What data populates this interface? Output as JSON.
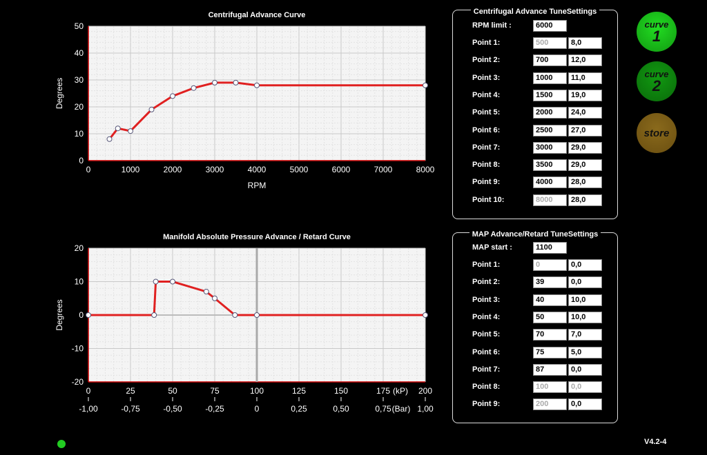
{
  "chart_data": [
    {
      "type": "line",
      "title": "Centrifugal Advance Curve",
      "xlabel": "RPM",
      "ylabel": "Degrees",
      "xlim": [
        0,
        8000
      ],
      "ylim": [
        0,
        50
      ],
      "xticks": [
        "0",
        "1000",
        "2000",
        "3000",
        "4000",
        "5000",
        "6000",
        "7000",
        "8000"
      ],
      "yticks": [
        "0",
        "10",
        "20",
        "30",
        "40",
        "50"
      ],
      "grid": true,
      "x": [
        500,
        700,
        1000,
        1500,
        2000,
        2500,
        3000,
        3500,
        4000,
        8000
      ],
      "y": [
        8,
        12,
        11,
        19,
        24,
        27,
        29,
        29,
        28,
        28
      ],
      "color": "#e02020"
    },
    {
      "type": "line",
      "title": "Manifold Absolute Pressure Advance / Retard Curve",
      "xlabel": "",
      "ylabel": "Degrees",
      "xlim": [
        0,
        200
      ],
      "ylim": [
        -20,
        20
      ],
      "xticks": [
        "0",
        "25",
        "50",
        "75",
        "100",
        "125",
        "150",
        "175",
        "200"
      ],
      "xticks_bar": [
        "-1,00",
        "-0,75",
        "-0,50",
        "-0,25",
        "0",
        "0,25",
        "0,50",
        "0,75",
        "1,00"
      ],
      "xunit_kp": "(kP)",
      "xunit_bar": "(Bar)",
      "yticks": [
        "-20",
        "-10",
        "0",
        "10",
        "20"
      ],
      "grid": true,
      "x": [
        0,
        39,
        40,
        50,
        70,
        75,
        87,
        100,
        200
      ],
      "y": [
        0,
        0,
        10,
        10,
        7,
        5,
        0,
        0,
        0
      ],
      "color": "#e02020"
    }
  ],
  "centrifugal": {
    "title": "Centrifugal Advance TuneSettings",
    "rpm_label": "RPM limit :",
    "rpm_limit": "6000",
    "points": [
      {
        "label": "Point 1:",
        "rpm": "500",
        "deg": "8,0",
        "dis": true
      },
      {
        "label": "Point 2:",
        "rpm": "700",
        "deg": "12,0"
      },
      {
        "label": "Point 3:",
        "rpm": "1000",
        "deg": "11,0"
      },
      {
        "label": "Point 4:",
        "rpm": "1500",
        "deg": "19,0"
      },
      {
        "label": "Point 5:",
        "rpm": "2000",
        "deg": "24,0"
      },
      {
        "label": "Point 6:",
        "rpm": "2500",
        "deg": "27,0"
      },
      {
        "label": "Point 7:",
        "rpm": "3000",
        "deg": "29,0"
      },
      {
        "label": "Point 8:",
        "rpm": "3500",
        "deg": "29,0"
      },
      {
        "label": "Point 9:",
        "rpm": "4000",
        "deg": "28,0"
      },
      {
        "label": "Point 10:",
        "rpm": "8000",
        "deg": "28,0",
        "dis": true
      }
    ]
  },
  "map": {
    "title": "MAP Advance/Retard TuneSettings",
    "start_label": "MAP start :",
    "start": "1100",
    "points": [
      {
        "label": "Point 1:",
        "kp": "0",
        "deg": "0,0",
        "dis": true
      },
      {
        "label": "Point 2:",
        "kp": "39",
        "deg": "0,0"
      },
      {
        "label": "Point 3:",
        "kp": "40",
        "deg": "10,0"
      },
      {
        "label": "Point 4:",
        "kp": "50",
        "deg": "10,0"
      },
      {
        "label": "Point 5:",
        "kp": "70",
        "deg": "7,0"
      },
      {
        "label": "Point 6:",
        "kp": "75",
        "deg": "5,0"
      },
      {
        "label": "Point 7:",
        "kp": "87",
        "deg": "0,0"
      },
      {
        "label": "Point 8:",
        "kp": "100",
        "deg": "0,0",
        "dis": true,
        "degdis": true
      },
      {
        "label": "Point 9:",
        "kp": "200",
        "deg": "0,0",
        "dis": true
      }
    ]
  },
  "buttons": {
    "curve1_word": "curve",
    "curve1_num": "1",
    "curve2_word": "curve",
    "curve2_num": "2",
    "store": "store",
    "curve1_color": "#22dd22",
    "curve2_color": "#119911",
    "store_color": "#8a6a1c"
  },
  "status": {
    "led_color": "#22cc22"
  },
  "version": "V4.2-4"
}
